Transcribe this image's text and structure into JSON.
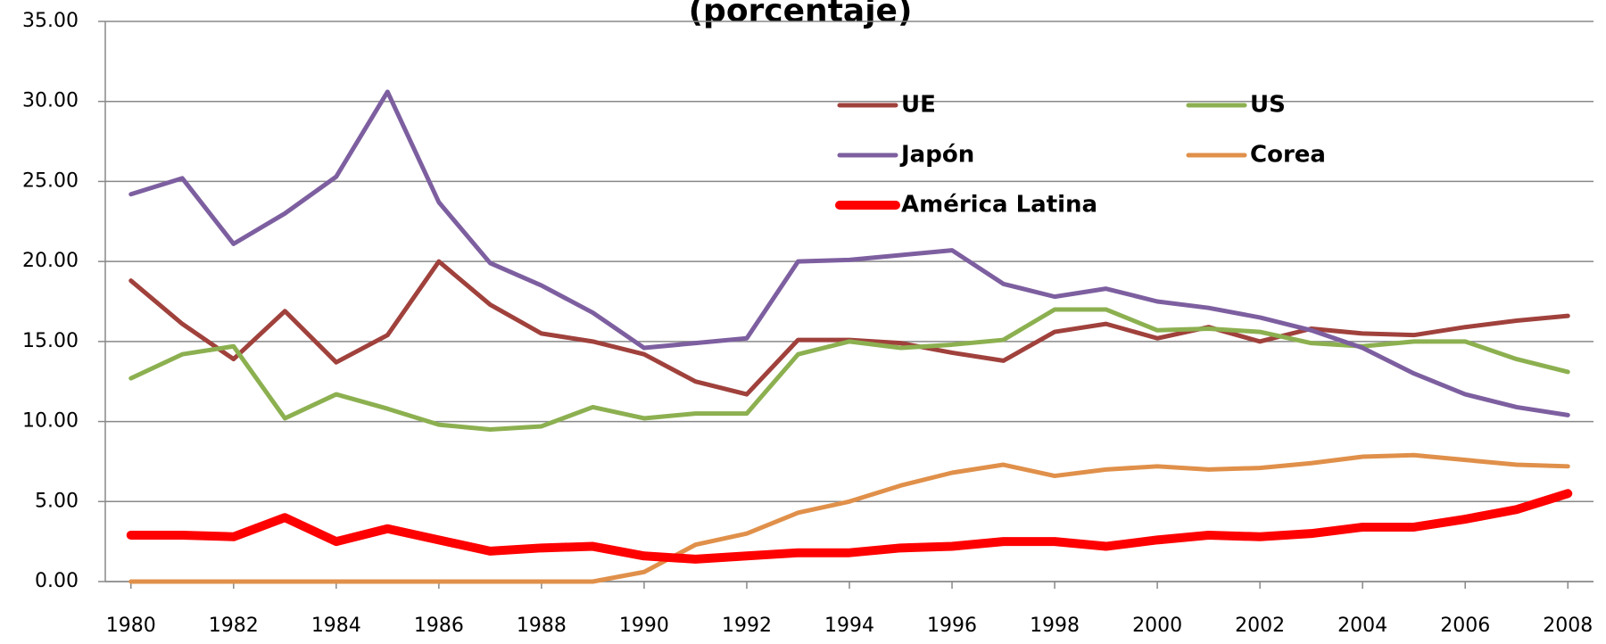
{
  "chart_data": {
    "type": "line",
    "title": "(porcentaje)",
    "x": [
      1980,
      1981,
      1982,
      1983,
      1984,
      1985,
      1986,
      1987,
      1988,
      1989,
      1990,
      1991,
      1992,
      1993,
      1994,
      1995,
      1996,
      1997,
      1998,
      1999,
      2000,
      2001,
      2002,
      2003,
      2004,
      2005,
      2006,
      2007,
      2008
    ],
    "series": [
      {
        "name": "UE",
        "color": "#a0413c",
        "linewidth": 5,
        "values": [
          18.8,
          16.1,
          13.9,
          16.9,
          13.7,
          15.4,
          20.0,
          17.3,
          15.5,
          15.0,
          14.2,
          12.5,
          11.7,
          15.1,
          15.1,
          14.9,
          14.3,
          13.8,
          15.6,
          16.1,
          15.2,
          15.9,
          15.0,
          15.8,
          15.5,
          15.4,
          15.9,
          16.3,
          16.6
        ]
      },
      {
        "name": "US",
        "color": "#8cb050",
        "linewidth": 5,
        "values": [
          12.7,
          14.2,
          14.7,
          10.2,
          11.7,
          10.8,
          9.8,
          9.5,
          9.7,
          10.9,
          10.2,
          10.5,
          10.5,
          14.2,
          15.0,
          14.6,
          14.8,
          15.1,
          17.0,
          17.0,
          15.7,
          15.8,
          15.6,
          14.9,
          14.7,
          15.0,
          15.0,
          13.9,
          13.1
        ]
      },
      {
        "name": "Japón",
        "color": "#7d5fa0",
        "linewidth": 5,
        "values": [
          24.2,
          25.2,
          21.1,
          23.0,
          25.3,
          30.6,
          23.7,
          19.9,
          18.5,
          16.8,
          14.6,
          14.9,
          15.2,
          20.0,
          20.1,
          20.4,
          20.7,
          18.6,
          17.8,
          18.3,
          17.5,
          17.1,
          16.5,
          15.7,
          14.6,
          13.0,
          11.7,
          10.9,
          10.4
        ]
      },
      {
        "name": "Corea",
        "color": "#e0904a",
        "linewidth": 5,
        "values": [
          0,
          0,
          0,
          0,
          0,
          0,
          0,
          0,
          0,
          0,
          0.6,
          2.3,
          3.0,
          4.3,
          5.0,
          6.0,
          6.8,
          7.3,
          6.6,
          7.0,
          7.2,
          7.0,
          7.1,
          7.4,
          7.8,
          7.9,
          7.6,
          7.3,
          7.2
        ]
      },
      {
        "name": "América Latina",
        "color": "#ff0000",
        "linewidth": 10,
        "values": [
          2.9,
          2.9,
          2.8,
          4.0,
          2.5,
          3.3,
          2.6,
          1.9,
          2.1,
          2.2,
          1.6,
          1.4,
          1.6,
          1.8,
          1.8,
          2.1,
          2.2,
          2.5,
          2.5,
          2.2,
          2.6,
          2.9,
          2.8,
          3.0,
          3.4,
          3.4,
          3.9,
          4.5,
          5.5
        ]
      }
    ],
    "xlim": [
      1979.5,
      2008.5
    ],
    "xticks": [
      1980,
      1982,
      1984,
      1986,
      1988,
      1990,
      1992,
      1994,
      1996,
      1998,
      2000,
      2002,
      2004,
      2006,
      2008
    ],
    "ylim": [
      0,
      35
    ],
    "yticks": [
      {
        "value": 0,
        "label": "0.00"
      },
      {
        "value": 5,
        "label": "5.00"
      },
      {
        "value": 10,
        "label": "10.00"
      },
      {
        "value": 15,
        "label": "15.00"
      },
      {
        "value": 20,
        "label": "20.00"
      },
      {
        "value": 25,
        "label": "25.00"
      },
      {
        "value": 30,
        "label": "30.00"
      },
      {
        "value": 35,
        "label": "35.00"
      }
    ],
    "grid": true
  }
}
